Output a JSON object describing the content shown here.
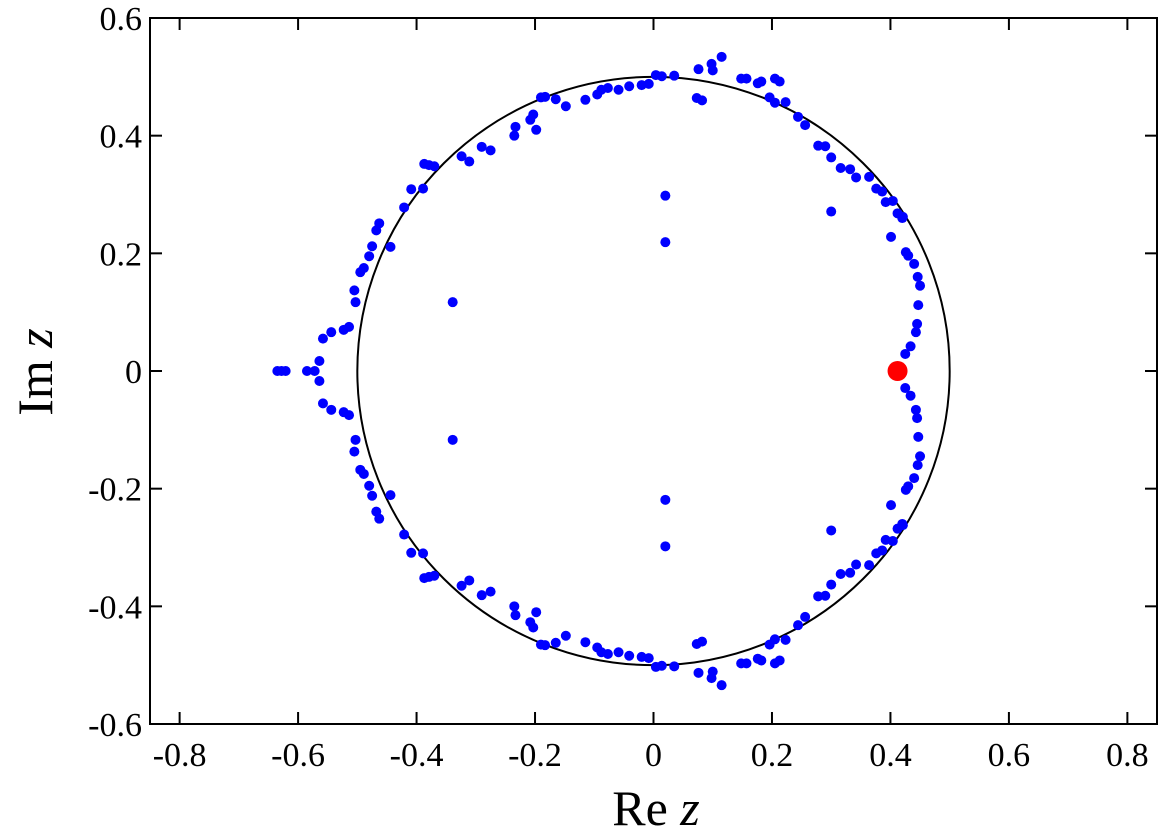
{
  "chart_data": {
    "type": "scatter",
    "title": "",
    "xlabel": {
      "text": "Re",
      "var": "z"
    },
    "ylabel": {
      "text": "Im",
      "var": "z"
    },
    "xlim": [
      -0.85,
      0.85
    ],
    "ylim": [
      -0.6,
      0.6
    ],
    "xticks": [
      -0.8,
      -0.6,
      -0.4,
      -0.2,
      0,
      0.2,
      0.4,
      0.6,
      0.8
    ],
    "xtick_labels": [
      "-0.8",
      "-0.6",
      "-0.4",
      "-0.2",
      "0",
      "0.2",
      "0.4",
      "0.6",
      "0.8"
    ],
    "yticks": [
      -0.6,
      -0.4,
      -0.2,
      0,
      0.2,
      0.4,
      0.6
    ],
    "ytick_labels": [
      "-0.6",
      "-0.4",
      "-0.2",
      "0",
      "0.2",
      "0.4",
      "0.6"
    ],
    "grid": false,
    "circle": {
      "center": [
        0,
        0
      ],
      "radius": 0.5,
      "color": "#000000"
    },
    "series": [
      {
        "color": "#0000ff",
        "marker": "circle",
        "points_upper": [
          [
            -0.635,
            0.0
          ],
          [
            -0.628,
            0.0
          ],
          [
            -0.621,
            0.0
          ],
          [
            -0.585,
            0.0
          ],
          [
            -0.572,
            0.0
          ],
          [
            -0.564,
            0.017
          ],
          [
            -0.558,
            0.055
          ],
          [
            -0.544,
            0.066
          ],
          [
            -0.523,
            0.07
          ],
          [
            -0.514,
            0.075
          ],
          [
            -0.503,
            0.117
          ],
          [
            -0.505,
            0.137
          ],
          [
            -0.495,
            0.168
          ],
          [
            -0.489,
            0.175
          ],
          [
            -0.48,
            0.195
          ],
          [
            -0.475,
            0.212
          ],
          [
            -0.468,
            0.239
          ],
          [
            -0.463,
            0.251
          ],
          [
            -0.444,
            0.211
          ],
          [
            -0.421,
            0.278
          ],
          [
            -0.409,
            0.309
          ],
          [
            -0.389,
            0.31
          ],
          [
            -0.379,
            0.35
          ],
          [
            -0.387,
            0.352
          ],
          [
            -0.37,
            0.348
          ],
          [
            -0.324,
            0.365
          ],
          [
            -0.311,
            0.356
          ],
          [
            -0.29,
            0.381
          ],
          [
            -0.275,
            0.375
          ],
          [
            -0.233,
            0.415
          ],
          [
            -0.235,
            0.4
          ],
          [
            -0.208,
            0.427
          ],
          [
            -0.198,
            0.41
          ],
          [
            -0.203,
            0.436
          ],
          [
            -0.19,
            0.465
          ],
          [
            -0.183,
            0.466
          ],
          [
            -0.165,
            0.462
          ],
          [
            -0.148,
            0.45
          ],
          [
            -0.115,
            0.461
          ],
          [
            -0.095,
            0.47
          ],
          [
            -0.088,
            0.478
          ],
          [
            -0.077,
            0.481
          ],
          [
            -0.059,
            0.478
          ],
          [
            -0.041,
            0.484
          ],
          [
            -0.02,
            0.486
          ],
          [
            -0.008,
            0.488
          ],
          [
            0.004,
            0.503
          ],
          [
            0.014,
            0.501
          ],
          [
            0.035,
            0.502
          ],
          [
            0.073,
            0.464
          ],
          [
            0.082,
            0.46
          ],
          [
            0.076,
            0.513
          ],
          [
            0.1,
            0.511
          ],
          [
            0.098,
            0.522
          ],
          [
            0.115,
            0.534
          ],
          [
            0.148,
            0.497
          ],
          [
            0.157,
            0.497
          ],
          [
            0.176,
            0.489
          ],
          [
            0.182,
            0.492
          ],
          [
            0.205,
            0.497
          ],
          [
            0.213,
            0.492
          ],
          [
            0.196,
            0.465
          ],
          [
            0.205,
            0.456
          ],
          [
            0.223,
            0.457
          ],
          [
            0.244,
            0.432
          ],
          [
            0.256,
            0.418
          ],
          [
            0.278,
            0.383
          ],
          [
            0.29,
            0.382
          ],
          [
            0.3,
            0.363
          ],
          [
            0.316,
            0.345
          ],
          [
            0.332,
            0.343
          ],
          [
            0.342,
            0.329
          ],
          [
            0.364,
            0.33
          ],
          [
            0.376,
            0.31
          ],
          [
            0.386,
            0.305
          ],
          [
            0.392,
            0.287
          ],
          [
            0.404,
            0.289
          ],
          [
            0.412,
            0.268
          ],
          [
            0.42,
            0.26
          ],
          [
            0.421,
            0.262
          ],
          [
            0.426,
            0.202
          ],
          [
            0.43,
            0.196
          ],
          [
            0.44,
            0.182
          ],
          [
            0.446,
            0.16
          ],
          [
            0.45,
            0.145
          ],
          [
            0.447,
            0.112
          ],
          [
            0.445,
            0.08
          ],
          [
            0.443,
            0.066
          ],
          [
            0.434,
            0.042
          ],
          [
            0.425,
            0.029
          ],
          [
            0.3,
            0.271
          ],
          [
            0.401,
            0.228
          ],
          [
            0.02,
            0.298
          ],
          [
            0.02,
            0.219
          ],
          [
            -0.339,
            0.117
          ]
        ]
      },
      {
        "color": "#ff0000",
        "marker": "circle-large",
        "points": [
          [
            0.412,
            0.0
          ]
        ]
      }
    ]
  }
}
